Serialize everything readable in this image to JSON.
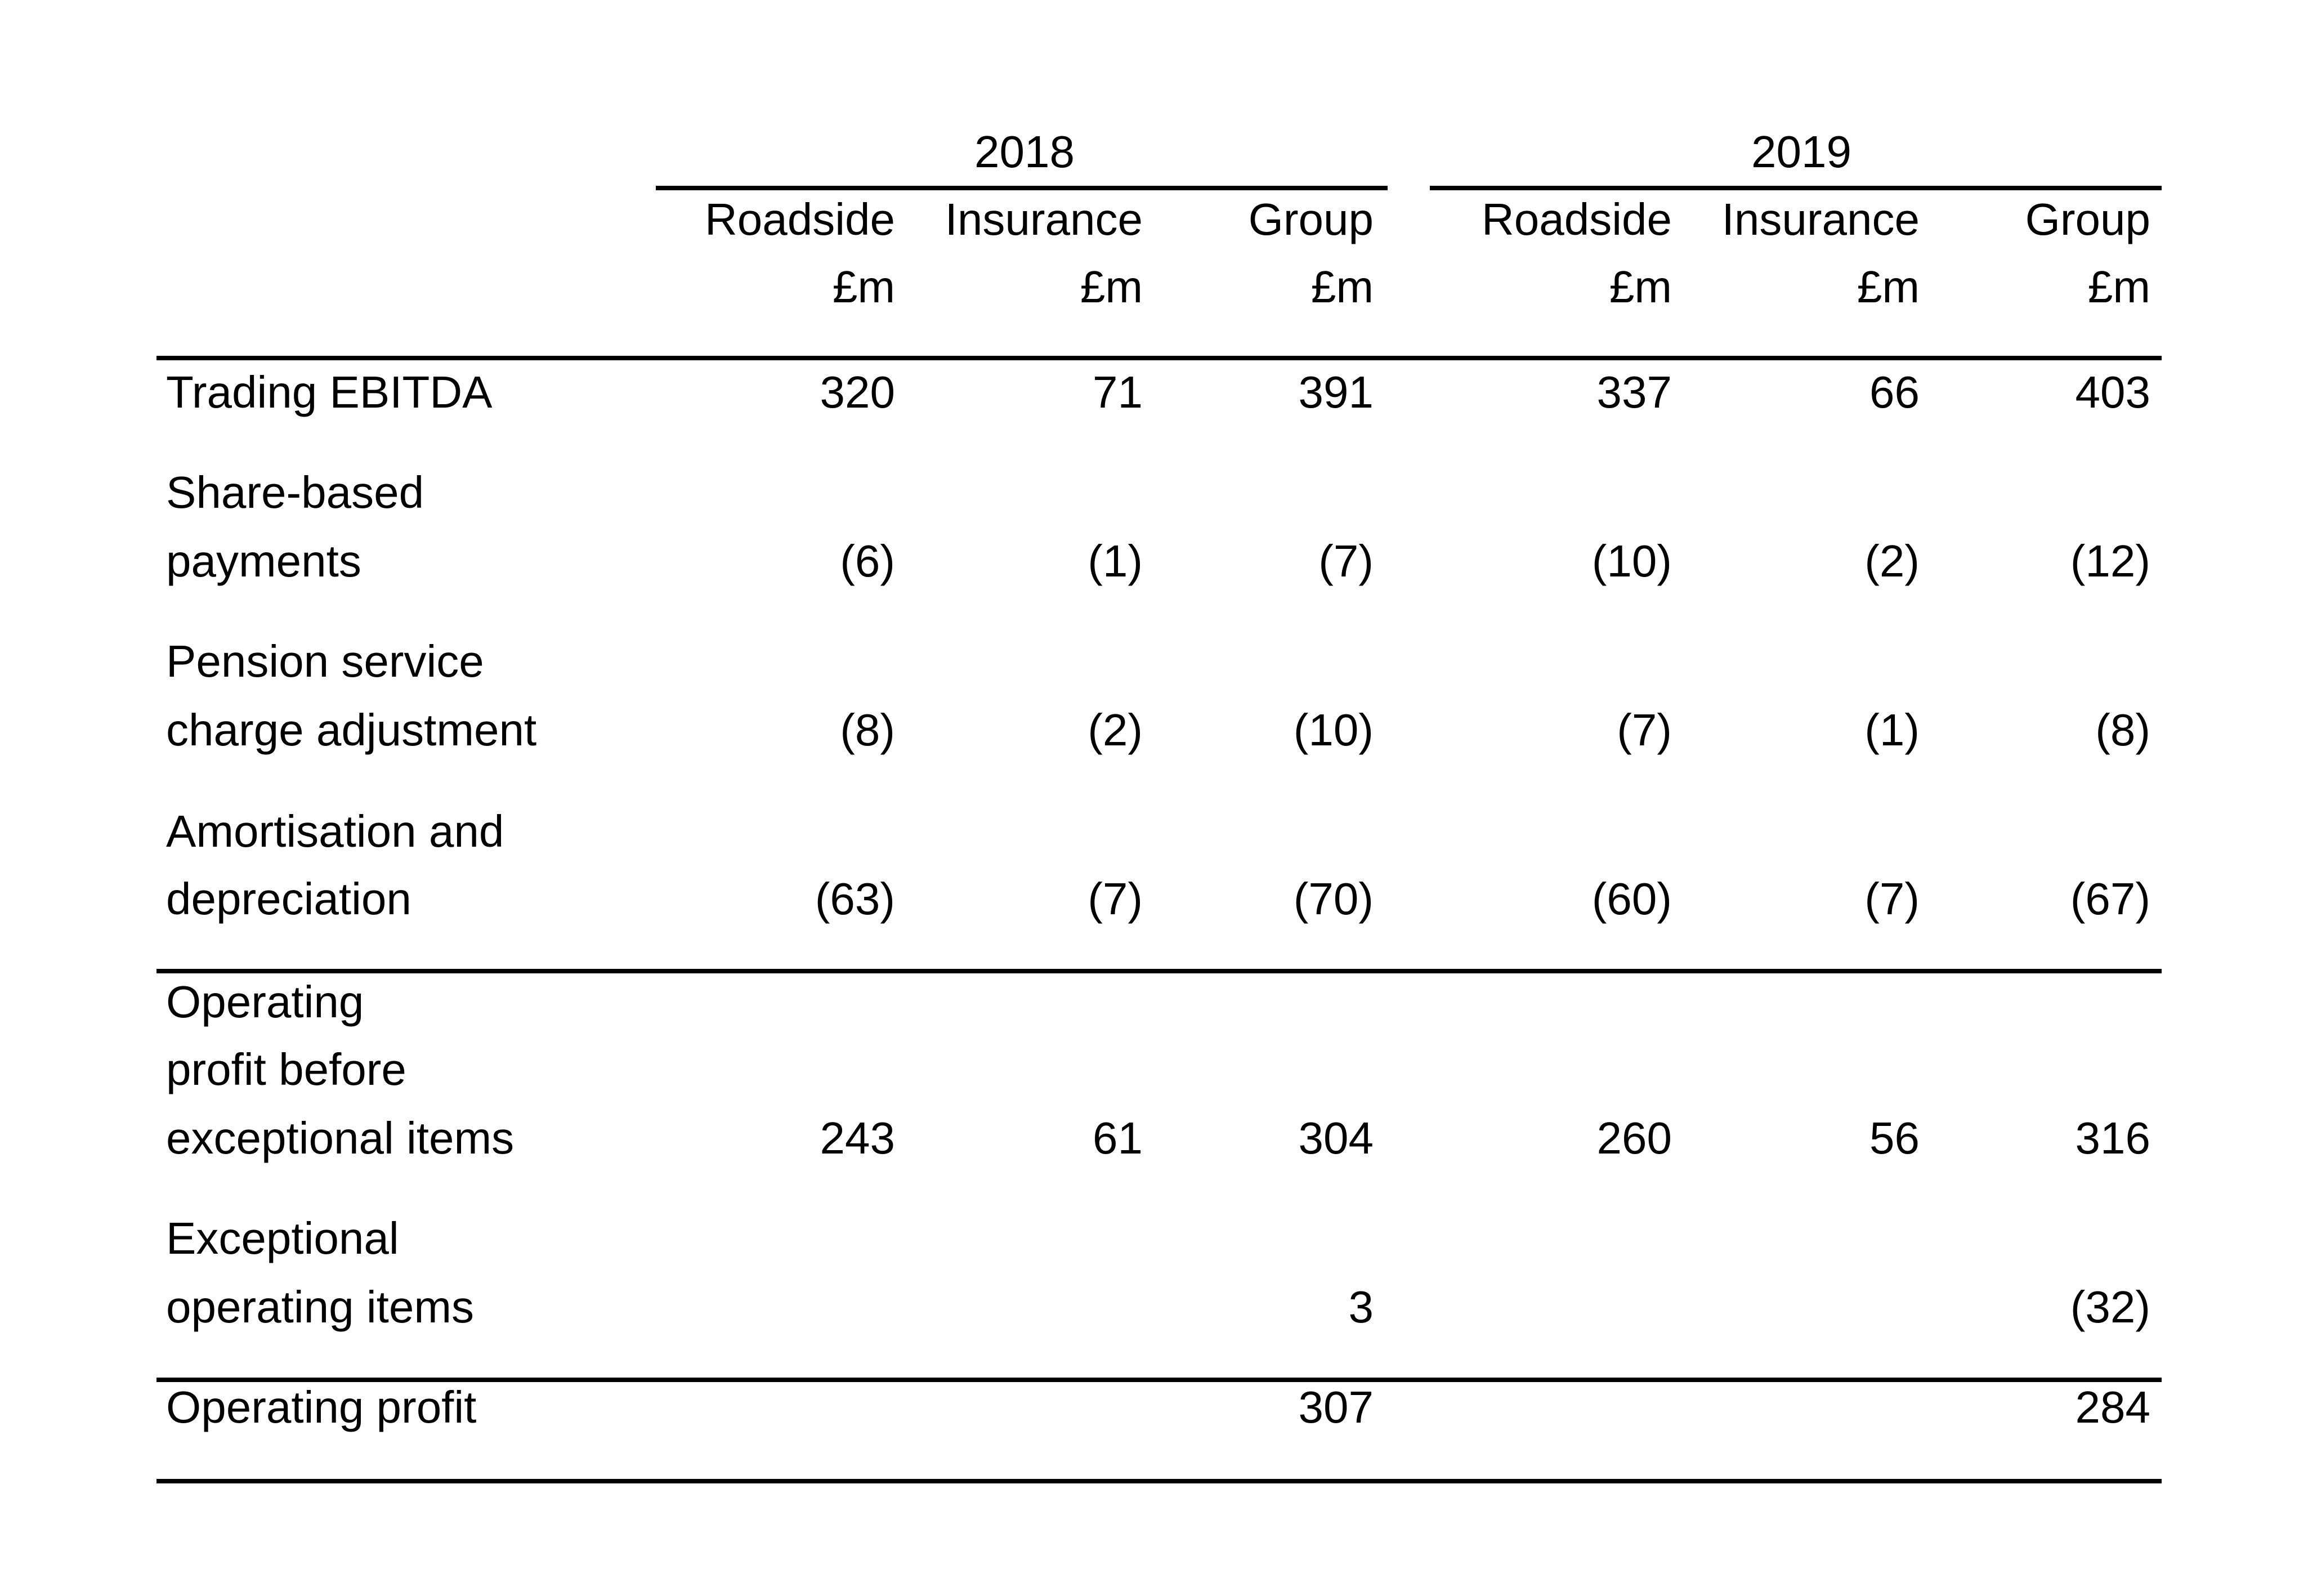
{
  "table": {
    "years": [
      "2018",
      "2019"
    ],
    "segments": [
      "Roadside",
      "Insurance",
      "Group",
      "Roadside",
      "Insurance",
      "Group"
    ],
    "units": [
      "£m",
      "£m",
      "£m",
      "£m",
      "£m",
      "£m"
    ],
    "rows": [
      {
        "label_lines": [
          "Trading EBITDA"
        ],
        "values": [
          "320",
          "71",
          "391",
          "337",
          "66",
          "403"
        ]
      },
      {
        "label_lines": [
          "Share-based",
          "payments"
        ],
        "values": [
          "(6)",
          "(1)",
          "(7)",
          "(10)",
          "(2)",
          "(12)"
        ]
      },
      {
        "label_lines": [
          "Pension service",
          "charge adjustment"
        ],
        "values": [
          "(8)",
          "(2)",
          "(10)",
          "(7)",
          "(1)",
          "(8)"
        ]
      },
      {
        "label_lines": [
          "Amortisation and",
          "depreciation"
        ],
        "values": [
          "(63)",
          "(7)",
          "(70)",
          "(60)",
          "(7)",
          "(67)"
        ]
      },
      {
        "label_lines": [
          "Operating",
          "profit before",
          "exceptional items"
        ],
        "values": [
          "243",
          "61",
          "304",
          "260",
          "56",
          "316"
        ]
      },
      {
        "label_lines": [
          "Exceptional",
          "operating items"
        ],
        "values": [
          "",
          "",
          "3",
          "",
          "",
          "(32)"
        ]
      },
      {
        "label_lines": [
          "Operating profit"
        ],
        "values": [
          "",
          "",
          "307",
          "",
          "",
          "284"
        ]
      }
    ]
  }
}
